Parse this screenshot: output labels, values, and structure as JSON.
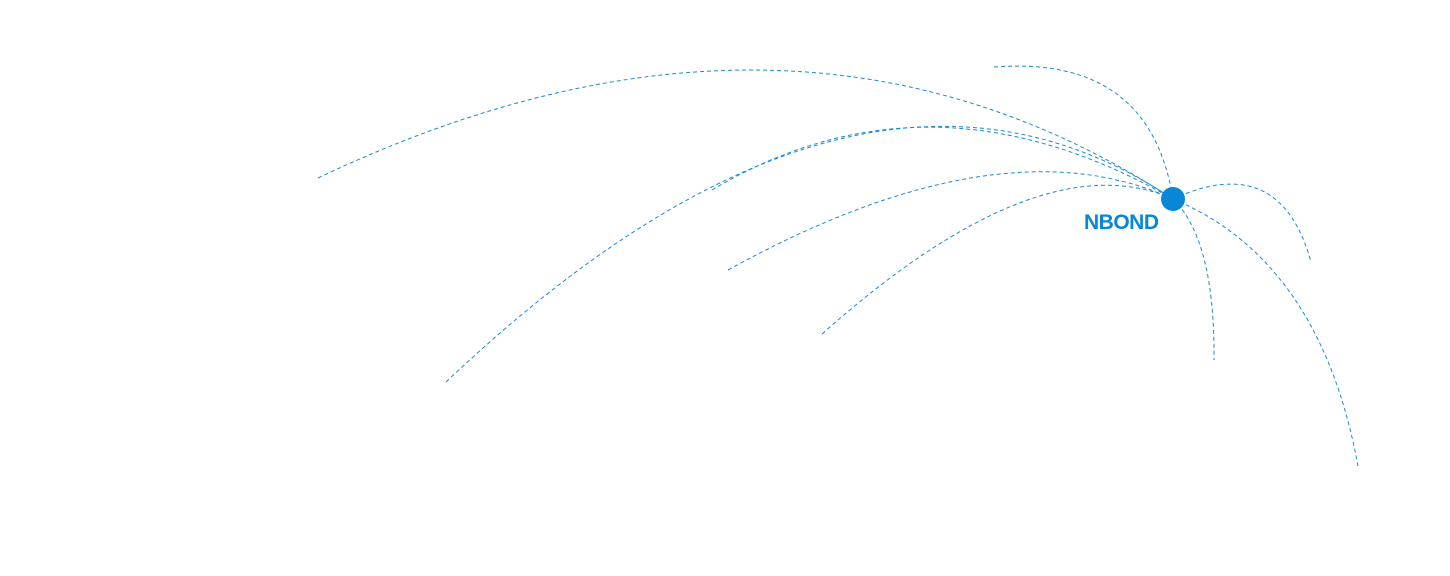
{
  "brand": {
    "name": "NBOND",
    "color": "#0a86d8"
  },
  "hub": {
    "icon": "node-dot-icon"
  },
  "connections": {
    "count_shown": 9,
    "style": "dashed",
    "color": "#1a8bd6"
  }
}
